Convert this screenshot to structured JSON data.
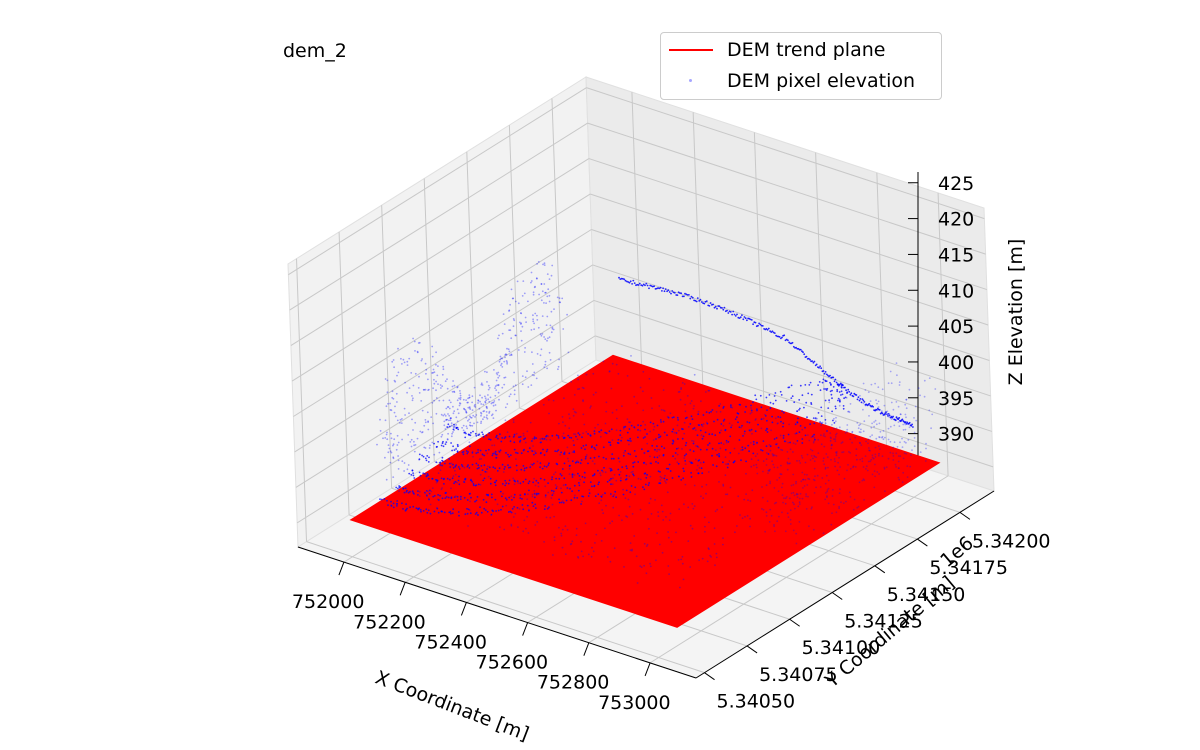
{
  "chart_data": {
    "type": "scatter",
    "projection": "3d",
    "title": "dem_2",
    "xlabel": "X Coordinate [m]",
    "ylabel": "Y Coordinate [m]",
    "zlabel": "Z Elevation [m]",
    "y_offset_label": "1e6",
    "x_ticks": [
      "752000",
      "752200",
      "752400",
      "752600",
      "752800",
      "753000"
    ],
    "y_ticks": [
      "5.34050",
      "5.34075",
      "5.34100",
      "5.34125",
      "5.34150",
      "5.34175",
      "5.34200"
    ],
    "z_ticks": [
      "390",
      "395",
      "400",
      "405",
      "410",
      "415",
      "420",
      "425"
    ],
    "xlim": [
      751850,
      753150
    ],
    "ylim": [
      5340450,
      5342200
    ],
    "zlim": [
      386.6,
      426.5
    ],
    "grid": true,
    "legend_position": "top-right",
    "series": [
      {
        "name": "DEM trend plane",
        "kind": "surface",
        "color": "#ff0000",
        "z": 390.5
      },
      {
        "name": "DEM pixel elevation",
        "kind": "scatter",
        "color": "#0000ff",
        "z_range_approx": [
          389,
          412
        ]
      }
    ]
  }
}
